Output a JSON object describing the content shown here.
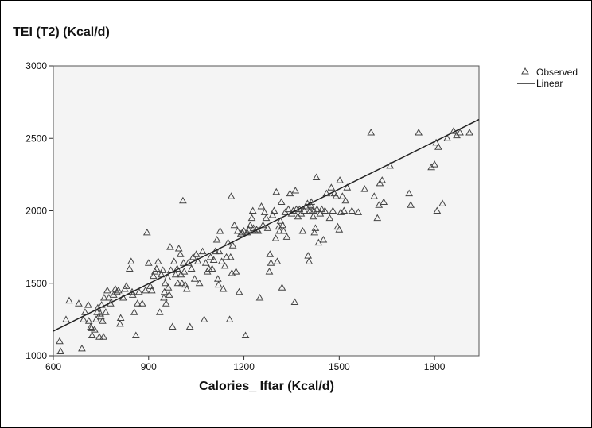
{
  "chart_data": {
    "type": "scatter",
    "ylabel": "TEI (T2) (Kcal/d)",
    "xlabel": "Calories_ Iftar (Kcal/d)",
    "xlim": [
      600,
      1940
    ],
    "ylim": [
      1000,
      3000
    ],
    "xticks": [
      "600",
      "900",
      "1200",
      "1500",
      "1800"
    ],
    "yticks": [
      "1000",
      "1500",
      "2000",
      "2500",
      "3000"
    ],
    "grid": false,
    "legend_position": "top-right outside",
    "legend": [
      "Observed",
      "Linear"
    ],
    "colors": {
      "marker": "#444444",
      "line": "#222222",
      "plot_bg": "#f4f4f4"
    },
    "fit_line": {
      "name": "Linear",
      "x": [
        600,
        1940
      ],
      "y": [
        1170,
        2630
      ]
    },
    "series": [
      {
        "name": "Observed",
        "marker": "triangle",
        "points": [
          [
            620,
            1100
          ],
          [
            623,
            1030
          ],
          [
            650,
            1380
          ],
          [
            640,
            1250
          ],
          [
            680,
            1360
          ],
          [
            690,
            1050
          ],
          [
            695,
            1250
          ],
          [
            700,
            1300
          ],
          [
            710,
            1350
          ],
          [
            712,
            1240
          ],
          [
            718,
            1200
          ],
          [
            720,
            1190
          ],
          [
            722,
            1140
          ],
          [
            730,
            1180
          ],
          [
            735,
            1250
          ],
          [
            738,
            1300
          ],
          [
            740,
            1330
          ],
          [
            745,
            1130
          ],
          [
            748,
            1290
          ],
          [
            750,
            1270
          ],
          [
            752,
            1350
          ],
          [
            755,
            1240
          ],
          [
            758,
            1130
          ],
          [
            760,
            1400
          ],
          [
            765,
            1300
          ],
          [
            770,
            1450
          ],
          [
            775,
            1400
          ],
          [
            780,
            1360
          ],
          [
            790,
            1420
          ],
          [
            795,
            1460
          ],
          [
            800,
            1440
          ],
          [
            805,
            1450
          ],
          [
            810,
            1220
          ],
          [
            812,
            1260
          ],
          [
            820,
            1400
          ],
          [
            825,
            1460
          ],
          [
            830,
            1480
          ],
          [
            840,
            1600
          ],
          [
            845,
            1650
          ],
          [
            848,
            1440
          ],
          [
            850,
            1420
          ],
          [
            855,
            1300
          ],
          [
            860,
            1140
          ],
          [
            865,
            1360
          ],
          [
            870,
            1440
          ],
          [
            880,
            1360
          ],
          [
            890,
            1450
          ],
          [
            895,
            1850
          ],
          [
            900,
            1640
          ],
          [
            905,
            1480
          ],
          [
            910,
            1450
          ],
          [
            915,
            1550
          ],
          [
            920,
            1580
          ],
          [
            925,
            1600
          ],
          [
            930,
            1650
          ],
          [
            935,
            1300
          ],
          [
            940,
            1560
          ],
          [
            945,
            1590
          ],
          [
            948,
            1400
          ],
          [
            950,
            1440
          ],
          [
            952,
            1500
          ],
          [
            955,
            1360
          ],
          [
            960,
            1540
          ],
          [
            962,
            1470
          ],
          [
            965,
            1420
          ],
          [
            968,
            1750
          ],
          [
            970,
            1590
          ],
          [
            975,
            1200
          ],
          [
            980,
            1650
          ],
          [
            985,
            1560
          ],
          [
            990,
            1600
          ],
          [
            992,
            1500
          ],
          [
            995,
            1740
          ],
          [
            1000,
            1700
          ],
          [
            1002,
            1560
          ],
          [
            1005,
            1500
          ],
          [
            1008,
            2070
          ],
          [
            1010,
            1640
          ],
          [
            1012,
            1580
          ],
          [
            1015,
            1490
          ],
          [
            1020,
            1460
          ],
          [
            1025,
            1640
          ],
          [
            1030,
            1200
          ],
          [
            1035,
            1600
          ],
          [
            1040,
            1680
          ],
          [
            1045,
            1530
          ],
          [
            1050,
            1700
          ],
          [
            1055,
            1650
          ],
          [
            1060,
            1500
          ],
          [
            1070,
            1720
          ],
          [
            1075,
            1250
          ],
          [
            1080,
            1640
          ],
          [
            1085,
            1580
          ],
          [
            1090,
            1600
          ],
          [
            1095,
            1680
          ],
          [
            1100,
            1600
          ],
          [
            1105,
            1660
          ],
          [
            1110,
            1720
          ],
          [
            1115,
            1800
          ],
          [
            1118,
            1530
          ],
          [
            1120,
            1490
          ],
          [
            1122,
            1720
          ],
          [
            1125,
            1860
          ],
          [
            1130,
            1650
          ],
          [
            1135,
            1460
          ],
          [
            1140,
            1620
          ],
          [
            1145,
            1680
          ],
          [
            1150,
            1780
          ],
          [
            1155,
            1250
          ],
          [
            1158,
            1680
          ],
          [
            1160,
            2100
          ],
          [
            1162,
            1570
          ],
          [
            1165,
            1760
          ],
          [
            1170,
            1900
          ],
          [
            1175,
            1580
          ],
          [
            1180,
            1860
          ],
          [
            1185,
            1440
          ],
          [
            1190,
            1840
          ],
          [
            1195,
            1850
          ],
          [
            1200,
            1860
          ],
          [
            1205,
            1140
          ],
          [
            1210,
            1850
          ],
          [
            1215,
            1870
          ],
          [
            1220,
            1900
          ],
          [
            1225,
            1950
          ],
          [
            1228,
            2000
          ],
          [
            1230,
            1880
          ],
          [
            1235,
            1860
          ],
          [
            1240,
            1870
          ],
          [
            1245,
            1860
          ],
          [
            1250,
            1400
          ],
          [
            1255,
            2030
          ],
          [
            1260,
            1900
          ],
          [
            1265,
            1990
          ],
          [
            1270,
            1950
          ],
          [
            1275,
            1880
          ],
          [
            1280,
            1580
          ],
          [
            1282,
            1700
          ],
          [
            1285,
            1640
          ],
          [
            1290,
            1970
          ],
          [
            1295,
            2000
          ],
          [
            1300,
            1810
          ],
          [
            1302,
            2130
          ],
          [
            1305,
            1650
          ],
          [
            1310,
            1890
          ],
          [
            1312,
            1860
          ],
          [
            1315,
            1930
          ],
          [
            1318,
            2060
          ],
          [
            1320,
            1470
          ],
          [
            1322,
            1900
          ],
          [
            1325,
            1860
          ],
          [
            1330,
            1990
          ],
          [
            1335,
            1820
          ],
          [
            1340,
            2010
          ],
          [
            1345,
            2120
          ],
          [
            1350,
            1980
          ],
          [
            1355,
            2000
          ],
          [
            1360,
            1370
          ],
          [
            1362,
            2140
          ],
          [
            1365,
            2010
          ],
          [
            1370,
            1960
          ],
          [
            1375,
            2010
          ],
          [
            1380,
            1980
          ],
          [
            1385,
            1860
          ],
          [
            1390,
            2000
          ],
          [
            1395,
            2030
          ],
          [
            1400,
            2050
          ],
          [
            1402,
            1690
          ],
          [
            1405,
            1650
          ],
          [
            1408,
            2000
          ],
          [
            1410,
            2040
          ],
          [
            1412,
            2060
          ],
          [
            1415,
            2000
          ],
          [
            1418,
            1960
          ],
          [
            1420,
            2000
          ],
          [
            1422,
            1850
          ],
          [
            1425,
            1880
          ],
          [
            1428,
            2230
          ],
          [
            1430,
            2010
          ],
          [
            1435,
            1780
          ],
          [
            1440,
            1980
          ],
          [
            1445,
            2010
          ],
          [
            1450,
            1800
          ],
          [
            1455,
            2000
          ],
          [
            1460,
            2120
          ],
          [
            1470,
            1950
          ],
          [
            1475,
            2160
          ],
          [
            1480,
            2000
          ],
          [
            1485,
            2120
          ],
          [
            1490,
            2100
          ],
          [
            1495,
            1890
          ],
          [
            1500,
            1870
          ],
          [
            1502,
            2210
          ],
          [
            1505,
            1990
          ],
          [
            1510,
            2100
          ],
          [
            1515,
            2000
          ],
          [
            1520,
            2070
          ],
          [
            1525,
            2160
          ],
          [
            1540,
            2000
          ],
          [
            1560,
            1990
          ],
          [
            1580,
            2150
          ],
          [
            1600,
            2540
          ],
          [
            1610,
            2100
          ],
          [
            1620,
            1950
          ],
          [
            1625,
            2040
          ],
          [
            1628,
            2190
          ],
          [
            1635,
            2210
          ],
          [
            1640,
            2060
          ],
          [
            1660,
            2310
          ],
          [
            1720,
            2120
          ],
          [
            1725,
            2040
          ],
          [
            1750,
            2540
          ],
          [
            1790,
            2300
          ],
          [
            1800,
            2320
          ],
          [
            1805,
            2470
          ],
          [
            1808,
            2000
          ],
          [
            1812,
            2440
          ],
          [
            1825,
            2050
          ],
          [
            1840,
            2500
          ],
          [
            1860,
            2550
          ],
          [
            1870,
            2520
          ],
          [
            1880,
            2540
          ],
          [
            1910,
            2540
          ]
        ]
      }
    ]
  }
}
